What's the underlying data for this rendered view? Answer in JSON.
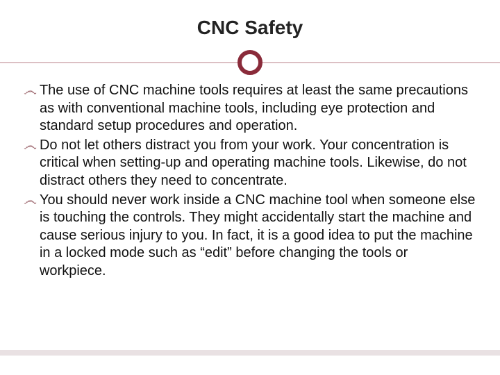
{
  "slide": {
    "title": "CNC Safety",
    "title_fontsize": 28,
    "title_color": "#222222",
    "divider": {
      "line_color": "#8a2b3a",
      "circle_border_color": "#8a2b3a",
      "circle_border_width": 6,
      "circle_diameter": 36,
      "circle_fill": "#ffffff"
    },
    "bullet_marker": "෴",
    "bullet_marker_color": "#8a4a52",
    "body_fontsize": 20,
    "body_lineheight": 1.28,
    "body_color": "#111111",
    "bullets": [
      "The use of CNC machine tools requires at least the same precautions as with conventional machine tools, including eye protection and standard setup procedures and operation.",
      "Do not let others distract you from your work. Your concentration is critical when setting-up and operating machine tools. Likewise, do not distract others they need to concentrate.",
      "You should never work inside a CNC machine tool when someone else is touching the controls. They might accidentally start the machine and cause serious injury to you. In fact, it is a good idea to put the machine in a locked mode such as “edit” before changing the tools or workpiece."
    ],
    "footer_strip_color": "#e9e1e3",
    "background_color": "#ffffff"
  }
}
